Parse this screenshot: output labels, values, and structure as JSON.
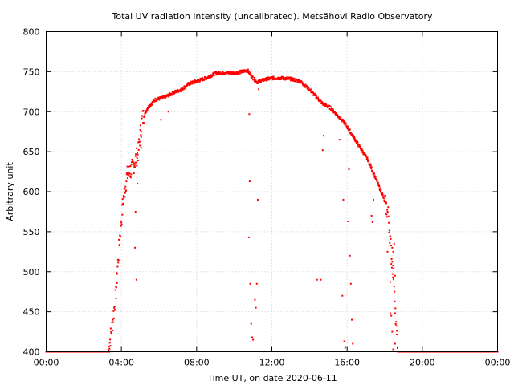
{
  "chart_data": {
    "type": "scatter",
    "title": "Total UV radiation intensity (uncalibrated). Metsähovi Radio Observatory",
    "xlabel": "Time UT, on date 2020-06-11",
    "ylabel": "Arbitrary unit",
    "x_unit": "hours UT",
    "xlim": [
      0,
      24
    ],
    "ylim": [
      400,
      800
    ],
    "x_ticks": [
      {
        "value": 0,
        "label": "00:00"
      },
      {
        "value": 4,
        "label": "04:00"
      },
      {
        "value": 8,
        "label": "08:00"
      },
      {
        "value": 12,
        "label": "12:00"
      },
      {
        "value": 16,
        "label": "16:00"
      },
      {
        "value": 20,
        "label": "20:00"
      },
      {
        "value": 24,
        "label": "00:00"
      }
    ],
    "y_ticks": [
      400,
      450,
      500,
      550,
      600,
      650,
      700,
      750,
      800
    ],
    "grid": true,
    "marker_color": "#ff0000",
    "series_profile": [
      [
        0.0,
        400
      ],
      [
        3.3,
        400
      ],
      [
        3.5,
        430
      ],
      [
        3.7,
        470
      ],
      [
        3.9,
        540
      ],
      [
        4.1,
        590
      ],
      [
        4.3,
        620
      ],
      [
        4.6,
        630
      ],
      [
        4.9,
        650
      ],
      [
        5.1,
        690
      ],
      [
        5.4,
        705
      ],
      [
        5.8,
        715
      ],
      [
        6.3,
        718
      ],
      [
        6.8,
        724
      ],
      [
        7.2,
        728
      ],
      [
        7.6,
        735
      ],
      [
        8.0,
        738
      ],
      [
        8.5,
        742
      ],
      [
        9.0,
        748
      ],
      [
        9.5,
        749
      ],
      [
        10.0,
        748
      ],
      [
        10.4,
        750
      ],
      [
        10.7,
        752
      ],
      [
        10.9,
        745
      ],
      [
        11.2,
        737
      ],
      [
        11.6,
        740
      ],
      [
        12.0,
        742
      ],
      [
        12.5,
        742
      ],
      [
        13.0,
        741
      ],
      [
        13.5,
        738
      ],
      [
        14.0,
        728
      ],
      [
        14.3,
        720
      ],
      [
        14.7,
        710
      ],
      [
        15.1,
        705
      ],
      [
        15.5,
        695
      ],
      [
        15.9,
        685
      ],
      [
        16.3,
        670
      ],
      [
        16.7,
        655
      ],
      [
        17.1,
        640
      ],
      [
        17.5,
        618
      ],
      [
        17.9,
        595
      ],
      [
        18.2,
        570
      ],
      [
        18.35,
        520
      ],
      [
        18.5,
        490
      ],
      [
        18.6,
        430
      ],
      [
        18.7,
        400
      ],
      [
        24.0,
        400
      ]
    ],
    "outliers": [
      [
        4.75,
        575
      ],
      [
        4.8,
        490
      ],
      [
        4.72,
        530
      ],
      [
        4.85,
        610
      ],
      [
        5.05,
        655
      ],
      [
        6.1,
        690
      ],
      [
        6.5,
        700
      ],
      [
        10.8,
        697
      ],
      [
        10.82,
        613
      ],
      [
        10.78,
        543
      ],
      [
        10.85,
        485
      ],
      [
        10.9,
        435
      ],
      [
        10.95,
        418
      ],
      [
        11.0,
        415
      ],
      [
        11.1,
        465
      ],
      [
        11.15,
        455
      ],
      [
        11.2,
        485
      ],
      [
        11.25,
        590
      ],
      [
        11.3,
        728
      ],
      [
        14.4,
        490
      ],
      [
        14.6,
        490
      ],
      [
        14.7,
        652
      ],
      [
        14.75,
        670
      ],
      [
        15.6,
        665
      ],
      [
        15.8,
        590
      ],
      [
        15.75,
        470
      ],
      [
        15.85,
        413
      ],
      [
        15.9,
        405
      ],
      [
        16.05,
        563
      ],
      [
        16.1,
        628
      ],
      [
        16.15,
        520
      ],
      [
        16.2,
        485
      ],
      [
        16.25,
        440
      ],
      [
        16.3,
        410
      ],
      [
        17.3,
        570
      ],
      [
        17.35,
        562
      ],
      [
        17.4,
        590
      ],
      [
        18.15,
        525
      ],
      [
        18.3,
        487
      ],
      [
        18.4,
        530
      ],
      [
        18.45,
        525
      ],
      [
        18.5,
        535
      ],
      [
        18.55,
        495
      ],
      [
        18.3,
        448
      ],
      [
        18.35,
        445
      ],
      [
        18.4,
        425
      ],
      [
        18.45,
        403
      ],
      [
        18.55,
        410
      ]
    ]
  }
}
